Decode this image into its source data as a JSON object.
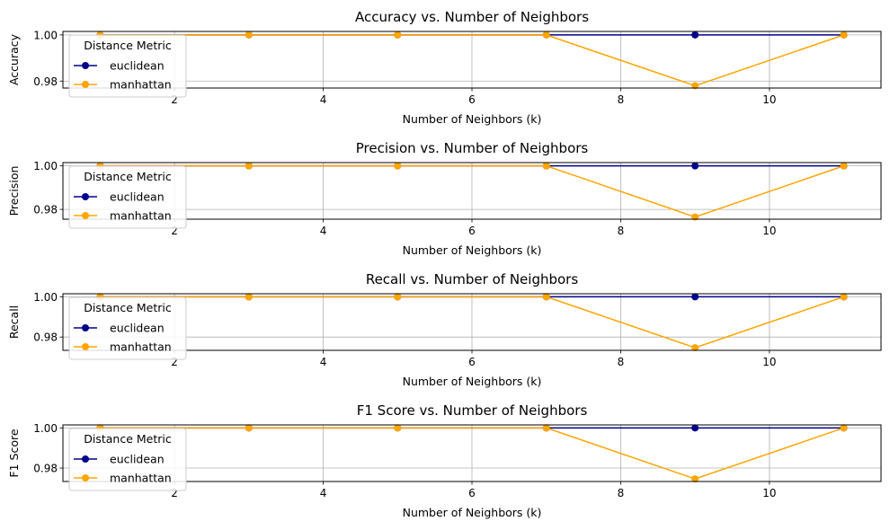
{
  "chart_data": [
    {
      "type": "line",
      "title": "Accuracy vs. Number of Neighbors",
      "xlabel": "Number of Neighbors (k)",
      "ylabel": "Accuracy",
      "x": [
        1,
        3,
        5,
        7,
        9,
        11
      ],
      "xlim": [
        0.5,
        11.5
      ],
      "ylim": [
        0.977,
        1.0015
      ],
      "xticks": [
        2,
        4,
        6,
        8,
        10
      ],
      "yticks": [
        0.98,
        1.0
      ],
      "ytick_labels": [
        "0.98",
        "1.00"
      ],
      "grid": true,
      "legend": {
        "title": "Distance Metric",
        "placement": "upper-left"
      },
      "series": [
        {
          "name": "euclidean",
          "color": "#00008b",
          "values": [
            1.0,
            1.0,
            1.0,
            1.0,
            1.0,
            1.0
          ]
        },
        {
          "name": "manhattan",
          "color": "#ffa500",
          "values": [
            1.0,
            1.0,
            1.0,
            1.0,
            0.978,
            1.0
          ]
        }
      ]
    },
    {
      "type": "line",
      "title": "Precision vs. Number of Neighbors",
      "xlabel": "Number of Neighbors (k)",
      "ylabel": "Precision",
      "x": [
        1,
        3,
        5,
        7,
        9,
        11
      ],
      "xlim": [
        0.5,
        11.5
      ],
      "ylim": [
        0.9755,
        1.0015
      ],
      "xticks": [
        2,
        4,
        6,
        8,
        10
      ],
      "yticks": [
        0.98,
        1.0
      ],
      "ytick_labels": [
        "0.98",
        "1.00"
      ],
      "grid": true,
      "legend": {
        "title": "Distance Metric",
        "placement": "upper-left"
      },
      "series": [
        {
          "name": "euclidean",
          "color": "#00008b",
          "values": [
            1.0,
            1.0,
            1.0,
            1.0,
            1.0,
            1.0
          ]
        },
        {
          "name": "manhattan",
          "color": "#ffa500",
          "values": [
            1.0,
            1.0,
            1.0,
            1.0,
            0.9765,
            1.0
          ]
        }
      ]
    },
    {
      "type": "line",
      "title": "Recall vs. Number of Neighbors",
      "xlabel": "Number of Neighbors (k)",
      "ylabel": "Recall",
      "x": [
        1,
        3,
        5,
        7,
        9,
        11
      ],
      "xlim": [
        0.5,
        11.5
      ],
      "ylim": [
        0.9734,
        1.0015
      ],
      "xticks": [
        2,
        4,
        6,
        8,
        10
      ],
      "yticks": [
        0.98,
        1.0
      ],
      "ytick_labels": [
        "0.98",
        "1.00"
      ],
      "grid": true,
      "legend": {
        "title": "Distance Metric",
        "placement": "upper-left"
      },
      "series": [
        {
          "name": "euclidean",
          "color": "#00008b",
          "values": [
            1.0,
            1.0,
            1.0,
            1.0,
            1.0,
            1.0
          ]
        },
        {
          "name": "manhattan",
          "color": "#ffa500",
          "values": [
            1.0,
            1.0,
            1.0,
            1.0,
            0.9747,
            1.0
          ]
        }
      ]
    },
    {
      "type": "line",
      "title": "F1 Score vs. Number of Neighbors",
      "xlabel": "Number of Neighbors (k)",
      "ylabel": "F1 Score",
      "x": [
        1,
        3,
        5,
        7,
        9,
        11
      ],
      "xlim": [
        0.5,
        11.5
      ],
      "ylim": [
        0.9733,
        1.0015
      ],
      "xticks": [
        2,
        4,
        6,
        8,
        10
      ],
      "yticks": [
        0.98,
        1.0
      ],
      "ytick_labels": [
        "0.98",
        "1.00"
      ],
      "grid": true,
      "legend": {
        "title": "Distance Metric",
        "placement": "upper-left"
      },
      "series": [
        {
          "name": "euclidean",
          "color": "#00008b",
          "values": [
            1.0,
            1.0,
            1.0,
            1.0,
            1.0,
            1.0
          ]
        },
        {
          "name": "manhattan",
          "color": "#ffa500",
          "values": [
            1.0,
            1.0,
            1.0,
            1.0,
            0.9746,
            1.0
          ]
        }
      ]
    }
  ]
}
